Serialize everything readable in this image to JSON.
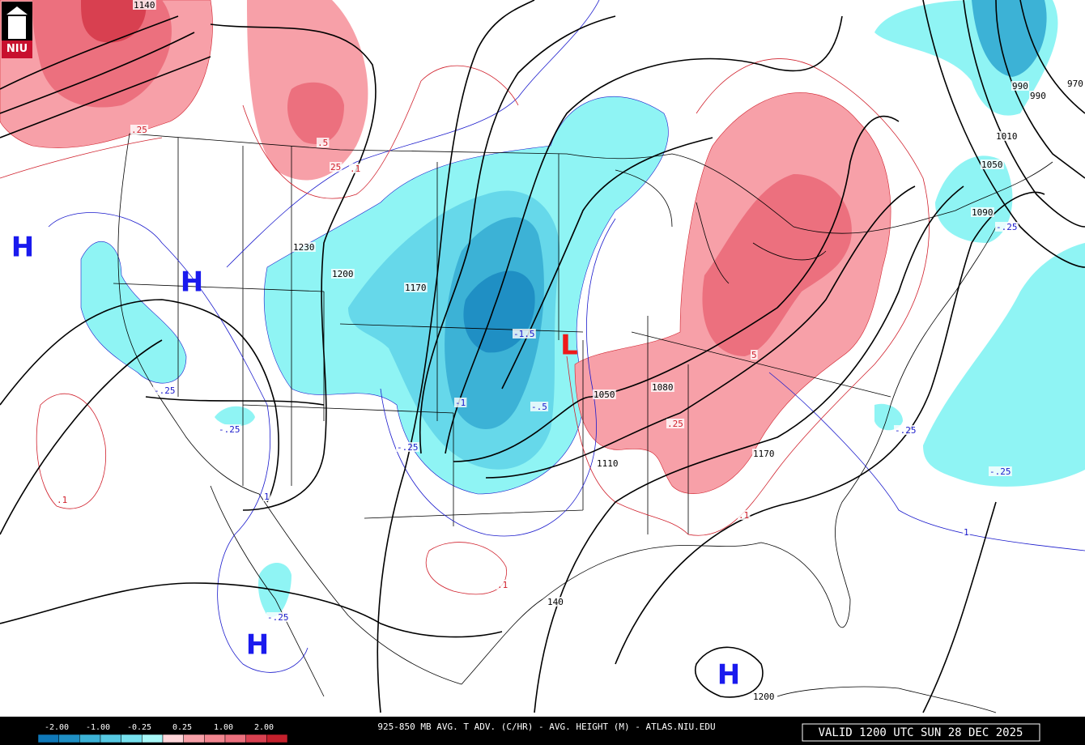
{
  "logo": "NIU",
  "title": "925-850 MB AVG. T ADV. (C/HR) - AVG. HEIGHT (M) - ATLAS.NIU.EDU",
  "valid": "VALID 1200 UTC SUN 28 DEC 2025",
  "legend": {
    "labels": [
      "-2.00",
      "-1.00",
      "-0.25",
      "0.25",
      "1.00",
      "2.00"
    ],
    "colors": [
      "#0f78b8",
      "#1f8fc4",
      "#3cb2d6",
      "#56c8e2",
      "#76e0ee",
      "#a8f8f8",
      "#ffd6da",
      "#f7a0a8",
      "#f28690",
      "#ec707e",
      "#d84050",
      "#c4202c"
    ]
  },
  "markers": [
    {
      "text": "H",
      "color": "#1a1aee"
    },
    {
      "text": "H",
      "color": "#1a1aee"
    },
    {
      "text": "H",
      "color": "#1a1aee"
    },
    {
      "text": "H",
      "color": "#1a1aee"
    },
    {
      "text": "L",
      "color": "#ee1a1a"
    }
  ],
  "contour_labels": [
    {
      "text": "1140",
      "color": "#000"
    },
    {
      "text": ".25",
      "color": "#d0202c"
    },
    {
      "text": ".5",
      "color": "#d0202c"
    },
    {
      "text": "25",
      "color": "#d0202c"
    },
    {
      "text": ".1",
      "color": "#d0202c"
    },
    {
      "text": "1230",
      "color": "#000"
    },
    {
      "text": "1200",
      "color": "#000"
    },
    {
      "text": "1170",
      "color": "#000"
    },
    {
      "text": "-1.5",
      "color": "#1a1acc"
    },
    {
      "text": "-1",
      "color": "#1a1acc"
    },
    {
      "text": "-.5",
      "color": "#1a1acc"
    },
    {
      "text": "-.25",
      "color": "#1a1acc"
    },
    {
      "text": "-.25",
      "color": "#1a1acc"
    },
    {
      "text": "-.25",
      "color": "#1a1acc"
    },
    {
      "text": "1050",
      "color": "#000"
    },
    {
      "text": "1080",
      "color": "#000"
    },
    {
      "text": ".25",
      "color": "#d0202c"
    },
    {
      "text": "1110",
      "color": "#000"
    },
    {
      "text": "1170",
      "color": "#000"
    },
    {
      "text": ".1",
      "color": "#d0202c"
    },
    {
      "text": "-.25",
      "color": "#1a1acc"
    },
    {
      "text": "-.25",
      "color": "#1a1acc"
    },
    {
      "text": "1",
      "color": "#1a1acc"
    },
    {
      "text": ".1",
      "color": "#d0202c"
    },
    {
      "text": "1",
      "color": "#1a1acc"
    },
    {
      "text": ".1",
      "color": "#d0202c"
    },
    {
      "text": "140",
      "color": "#000"
    },
    {
      "text": "-.25",
      "color": "#1a1acc"
    },
    {
      "text": "1200",
      "color": "#000"
    },
    {
      "text": "1010",
      "color": "#000"
    },
    {
      "text": "1050",
      "color": "#000"
    },
    {
      "text": "1090",
      "color": "#000"
    },
    {
      "text": "-.25",
      "color": "#1a1acc"
    },
    {
      "text": "990",
      "color": "#000"
    },
    {
      "text": "970",
      "color": "#000"
    },
    {
      "text": "990",
      "color": "#000"
    },
    {
      "text": "5",
      "color": "#d0202c"
    }
  ]
}
